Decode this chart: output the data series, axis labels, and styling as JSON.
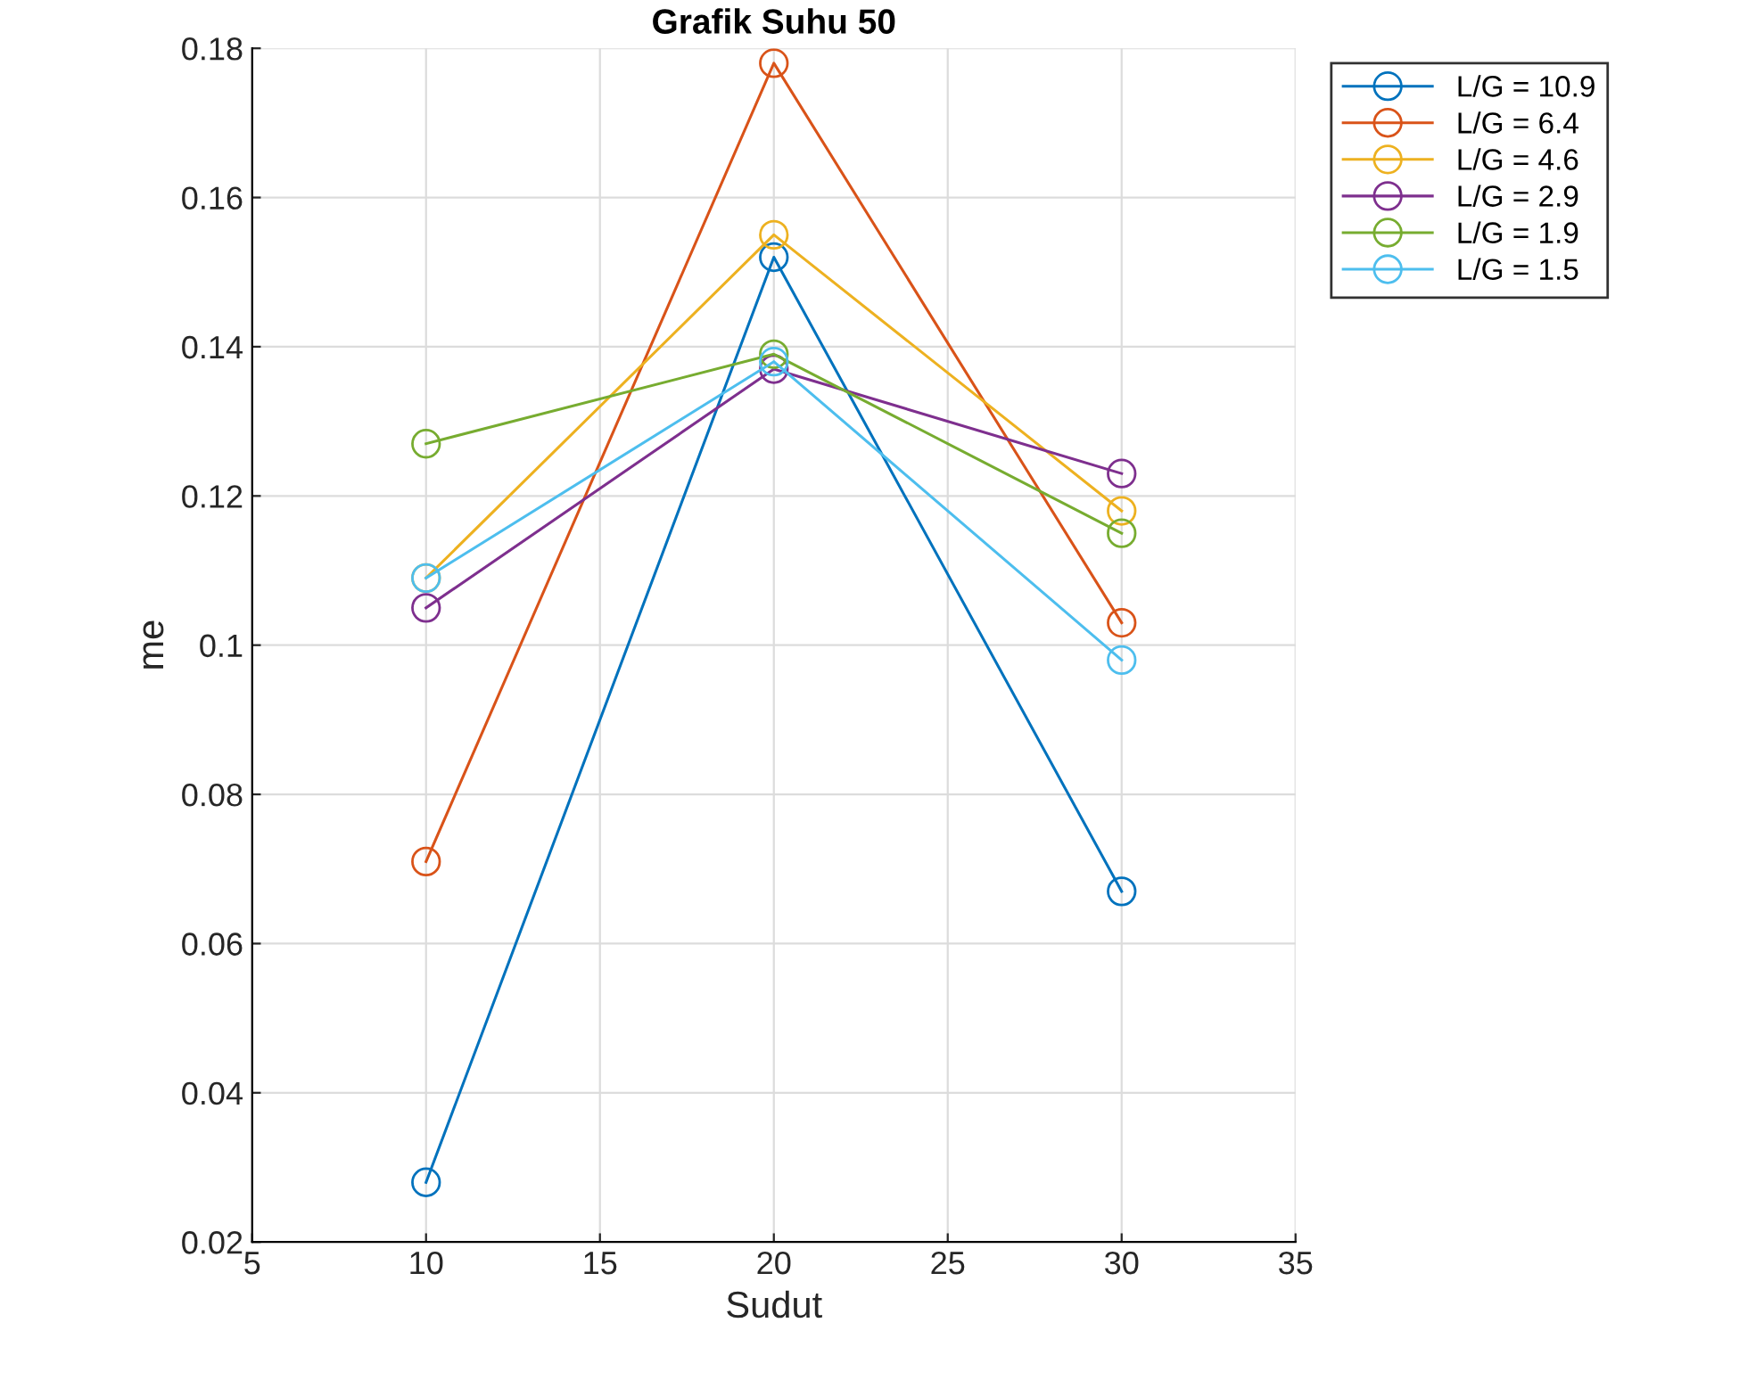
{
  "chart_data": {
    "type": "line",
    "title": "Grafik Suhu 50",
    "xlabel": "Sudut",
    "ylabel": "me",
    "x": [
      10,
      20,
      30
    ],
    "series": [
      {
        "name": "L/G = 10.9",
        "color": "#0072bd",
        "values": [
          0.028,
          0.152,
          0.067
        ]
      },
      {
        "name": "L/G = 6.4",
        "color": "#d95319",
        "values": [
          0.071,
          0.178,
          0.103
        ]
      },
      {
        "name": "L/G = 4.6",
        "color": "#edb120",
        "values": [
          0.109,
          0.155,
          0.118
        ]
      },
      {
        "name": "L/G = 2.9",
        "color": "#7e2f8e",
        "values": [
          0.105,
          0.137,
          0.123
        ]
      },
      {
        "name": "L/G = 1.9",
        "color": "#77ac30",
        "values": [
          0.127,
          0.139,
          0.115
        ]
      },
      {
        "name": "L/G = 1.5",
        "color": "#4dbeee",
        "values": [
          0.109,
          0.138,
          0.098
        ]
      }
    ],
    "xlim": [
      5,
      35
    ],
    "xticks": [
      5,
      10,
      15,
      20,
      25,
      30,
      35
    ],
    "ylim": [
      0.02,
      0.18
    ],
    "yticks": [
      {
        "value": 0.02,
        "label": "0.02"
      },
      {
        "value": 0.04,
        "label": "0.04"
      },
      {
        "value": 0.06,
        "label": "0.06"
      },
      {
        "value": 0.08,
        "label": "0.08"
      },
      {
        "value": 0.1,
        "label": "0.1"
      },
      {
        "value": 0.12,
        "label": "0.12"
      },
      {
        "value": 0.14,
        "label": "0.14"
      },
      {
        "value": 0.16,
        "label": "0.16"
      },
      {
        "value": 0.18,
        "label": "0.18"
      }
    ],
    "grid": true,
    "legend": "top right",
    "marker": "circle",
    "line_style": "solid"
  }
}
